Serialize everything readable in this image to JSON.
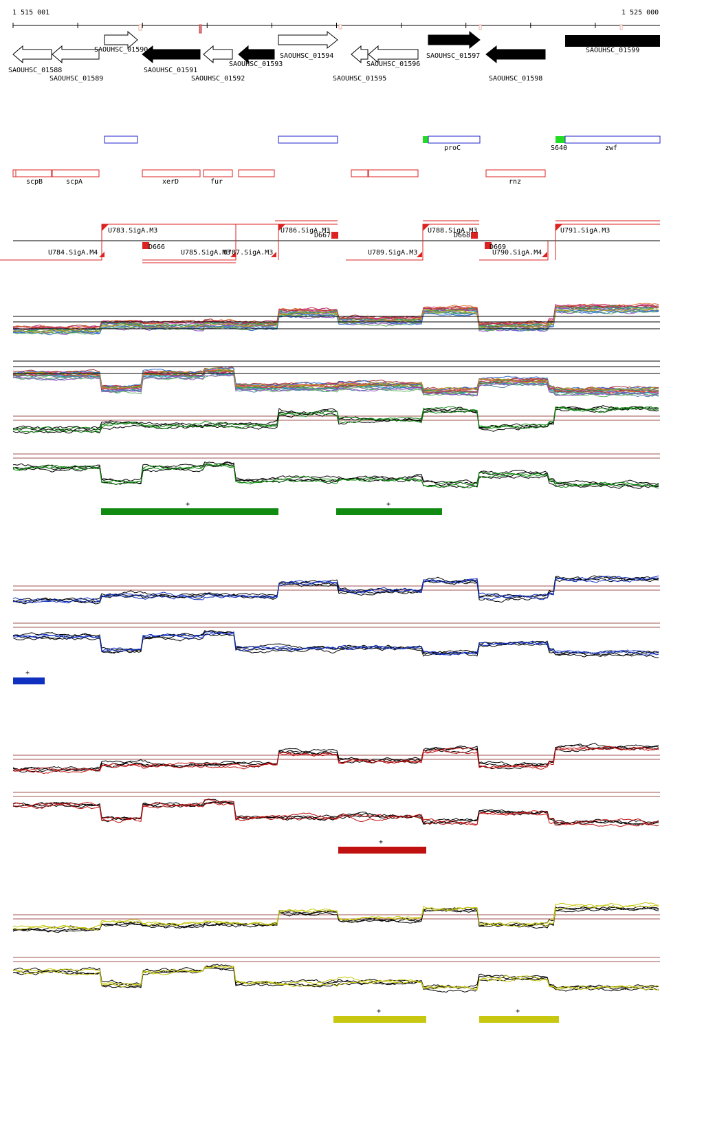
{
  "axis": {
    "start_label": "1 515 001",
    "end_label": "1 525 000"
  },
  "colors": {
    "feature_blue": "#2222cc",
    "feature_red": "#dd2222",
    "tss_green": "#22dd22",
    "condition_green": "#108a10",
    "condition_blue": "#1030c0",
    "condition_red": "#c01010",
    "condition_yellow": "#c8c810",
    "threshold_line": "#a05050"
  },
  "genes": [
    {
      "name": "SAOUHSC_01588",
      "strand": "-",
      "filled": false
    },
    {
      "name": "SAOUHSC_01589",
      "strand": "-",
      "filled": false
    },
    {
      "name": "SAOUHSC_01590",
      "strand": "+",
      "filled": false
    },
    {
      "name": "SAOUHSC_01591",
      "strand": "-",
      "filled": true
    },
    {
      "name": "SAOUHSC_01592",
      "strand": "-",
      "filled": false
    },
    {
      "name": "SAOUHSC_01593",
      "strand": "-",
      "filled": true
    },
    {
      "name": "SAOUHSC_01594",
      "strand": "+",
      "filled": false
    },
    {
      "name": "SAOUHSC_01595",
      "strand": "-",
      "filled": false
    },
    {
      "name": "SAOUHSC_01596",
      "strand": "-",
      "filled": false
    },
    {
      "name": "SAOUHSC_01597",
      "strand": "+",
      "filled": true
    },
    {
      "name": "SAOUHSC_01598",
      "strand": "-",
      "filled": true
    },
    {
      "name": "SAOUHSC_01599",
      "strand": "+",
      "filled": true
    }
  ],
  "blue_features": [
    {
      "label": ""
    },
    {
      "label": ""
    },
    {
      "label": "proC"
    },
    {
      "label": "zwf"
    }
  ],
  "tss_marks": [
    {
      "label": "S640"
    }
  ],
  "red_features": [
    {
      "label": "scpB"
    },
    {
      "label": "scpA"
    },
    {
      "label": "xerD"
    },
    {
      "label": "fur"
    },
    {
      "label": ""
    },
    {
      "label": ""
    },
    {
      "label": "rnz"
    }
  ],
  "segments": [
    {
      "label": "U783.SigA.M3"
    },
    {
      "label": "U784.SigA.M4"
    },
    {
      "label": "D666"
    },
    {
      "label": "U785.SigA.M3"
    },
    {
      "label": "U787.SigA.M3"
    },
    {
      "label": "U786.SigA.M3"
    },
    {
      "label": "D667"
    },
    {
      "label": "U789.SigA.M3"
    },
    {
      "label": "U788.SigA.M3"
    },
    {
      "label": "D668"
    },
    {
      "label": "D669"
    },
    {
      "label": "U790.SigA.M4"
    },
    {
      "label": "U791.SigA.M3"
    }
  ],
  "condition_groups": [
    {
      "name": "green",
      "bars": [
        {
          "mark": "+"
        },
        {
          "mark": "+"
        }
      ]
    },
    {
      "name": "blue",
      "bars": [
        {
          "mark": "+"
        }
      ]
    },
    {
      "name": "red",
      "bars": [
        {
          "mark": "+"
        }
      ]
    },
    {
      "name": "yellow",
      "bars": [
        {
          "mark": "+"
        },
        {
          "mark": "+"
        }
      ]
    }
  ]
}
